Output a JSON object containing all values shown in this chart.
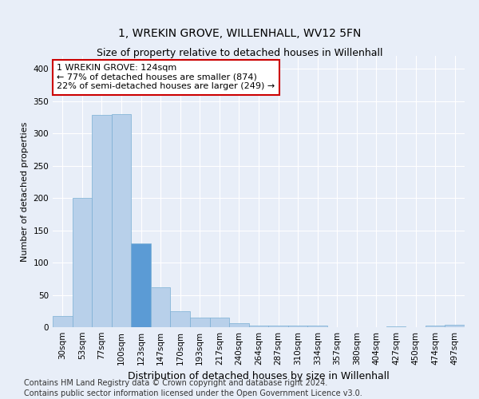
{
  "title": "1, WREKIN GROVE, WILLENHALL, WV12 5FN",
  "subtitle": "Size of property relative to detached houses in Willenhall",
  "xlabel": "Distribution of detached houses by size in Willenhall",
  "ylabel": "Number of detached properties",
  "bar_color": "#b8d0ea",
  "bar_edge_color": "#7aafd4",
  "background_color": "#e8eef8",
  "plot_bg_color": "#e8eef8",
  "grid_color": "#ffffff",
  "categories": [
    "30sqm",
    "53sqm",
    "77sqm",
    "100sqm",
    "123sqm",
    "147sqm",
    "170sqm",
    "193sqm",
    "217sqm",
    "240sqm",
    "264sqm",
    "287sqm",
    "310sqm",
    "334sqm",
    "357sqm",
    "380sqm",
    "404sqm",
    "427sqm",
    "450sqm",
    "474sqm",
    "497sqm"
  ],
  "values": [
    17,
    200,
    328,
    330,
    130,
    62,
    25,
    15,
    15,
    6,
    2,
    3,
    2,
    3,
    0,
    0,
    0,
    1,
    0,
    3,
    4
  ],
  "ylim": [
    0,
    420
  ],
  "yticks": [
    0,
    50,
    100,
    150,
    200,
    250,
    300,
    350,
    400
  ],
  "annotation_text": "1 WREKIN GROVE: 124sqm\n← 77% of detached houses are smaller (874)\n22% of semi-detached houses are larger (249) →",
  "annotation_box_color": "#ffffff",
  "annotation_box_edge_color": "#cc0000",
  "highlight_bar_index": 4,
  "highlight_bar_color": "#5b9bd5",
  "footer_line1": "Contains HM Land Registry data © Crown copyright and database right 2024.",
  "footer_line2": "Contains public sector information licensed under the Open Government Licence v3.0.",
  "title_fontsize": 10,
  "xlabel_fontsize": 9,
  "ylabel_fontsize": 8,
  "tick_fontsize": 7.5,
  "annotation_fontsize": 8,
  "footer_fontsize": 7
}
